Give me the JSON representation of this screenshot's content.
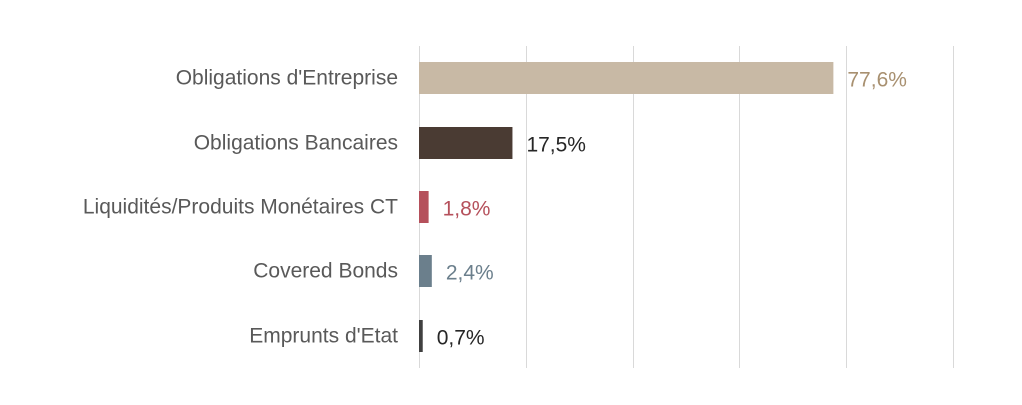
{
  "chart_data": {
    "type": "bar",
    "orientation": "horizontal",
    "categories": [
      "Obligations d'Entreprise",
      "Obligations Bancaires",
      "Liquidités/Produits Monétaires CT",
      "Covered Bonds",
      "Emprunts d'Etat"
    ],
    "values": [
      77.6,
      17.5,
      1.8,
      2.4,
      0.7
    ],
    "value_labels": [
      "77,6%",
      "17,5%",
      "1,8%",
      "2,4%",
      "0,7%"
    ],
    "bar_colors": [
      "#c8b9a5",
      "#4a3b33",
      "#b5505b",
      "#6b7f8c",
      "#404040"
    ],
    "label_colors": [
      "#a89070",
      "#262626",
      "#b5505b",
      "#6b7f8c",
      "#262626"
    ],
    "category_label_color": "#595959",
    "xlim": [
      0,
      100
    ],
    "x_gridline_step": 20,
    "grid": true,
    "legend": "none",
    "title": "",
    "xlabel": "",
    "ylabel": ""
  }
}
